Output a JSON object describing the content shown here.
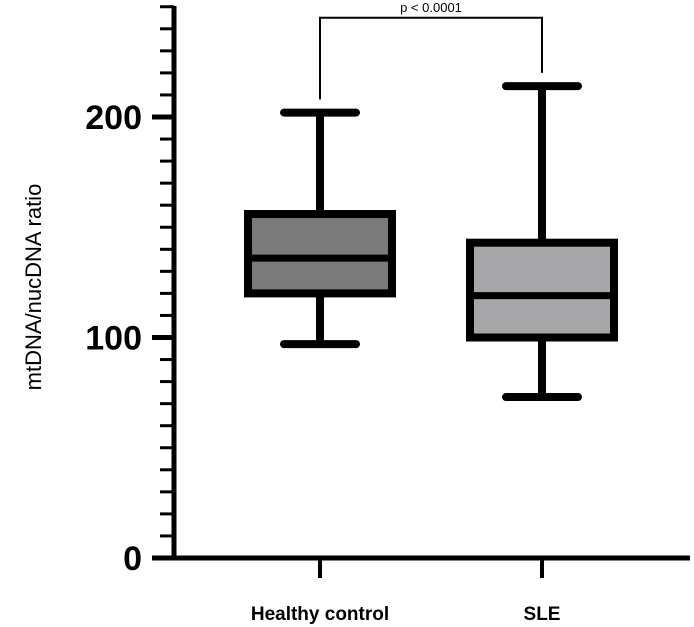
{
  "chart_data": {
    "type": "box",
    "ylabel": "mtDNA/nucDNA ratio",
    "ylim": [
      0,
      250
    ],
    "yticks": [
      0,
      100,
      200
    ],
    "ytick_labels": [
      "0",
      "100",
      "200"
    ],
    "minor_tick_step": 10,
    "categories": [
      "Healthy control",
      "SLE"
    ],
    "boxes": [
      {
        "name": "Healthy control",
        "min": 97,
        "q1": 120,
        "median": 136,
        "q3": 156,
        "max": 202,
        "color": "#7a7a7a"
      },
      {
        "name": "SLE",
        "min": 73,
        "q1": 100,
        "median": 119,
        "q3": 143,
        "max": 214,
        "color": "#a7a7a9"
      }
    ],
    "annotation": {
      "text": "p < 0.0001",
      "between": [
        "Healthy control",
        "SLE"
      ],
      "left_y": 208,
      "right_y": 220,
      "top_y": 245
    }
  }
}
